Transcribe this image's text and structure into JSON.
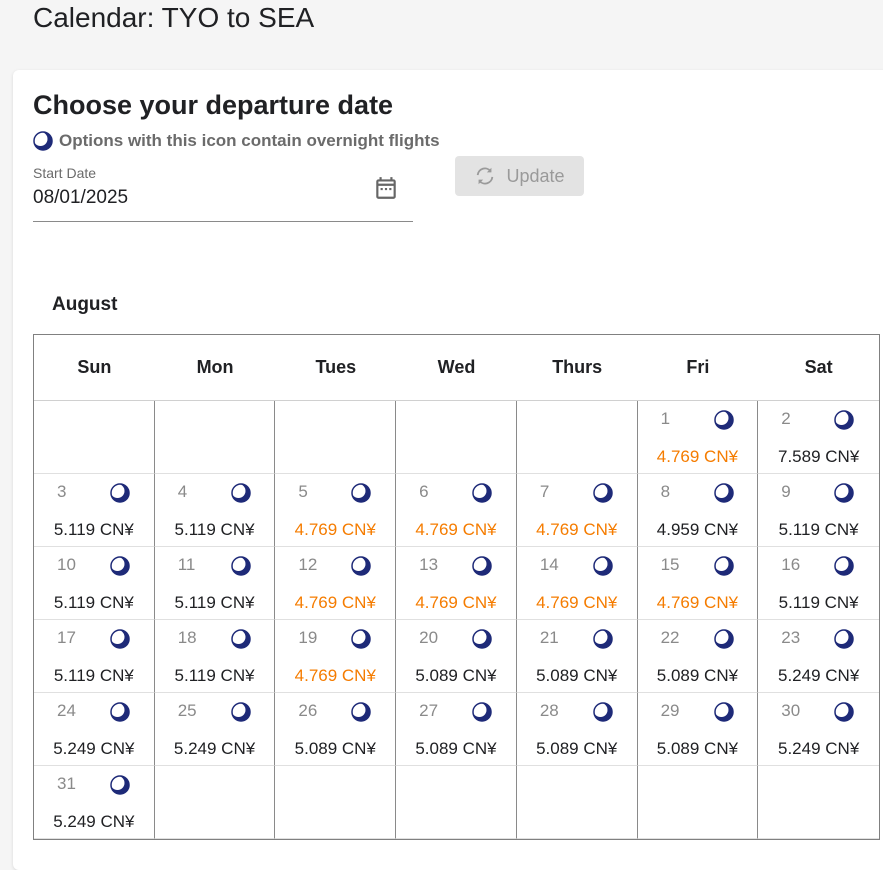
{
  "page": {
    "title": "Calendar: TYO to SEA"
  },
  "card": {
    "title": "Choose your departure date",
    "legend_text": "Options with this icon contain overnight flights",
    "date_field": {
      "label": "Start Date",
      "value": "08/01/2025"
    },
    "update_button": "Update"
  },
  "calendar": {
    "month": "August",
    "weekdays": [
      "Sun",
      "Mon",
      "Tues",
      "Wed",
      "Thurs",
      "Fri",
      "Sat"
    ],
    "currency": "CN¥",
    "colors": {
      "lowest_price": "#f57c00",
      "normal_price": "#202124",
      "moon": "#1e2a78"
    },
    "days": [
      {
        "day": "1",
        "price": "4.769 CN¥",
        "lowest": true,
        "overnight": true
      },
      {
        "day": "2",
        "price": "7.589 CN¥",
        "lowest": false,
        "overnight": true
      },
      {
        "day": "3",
        "price": "5.119 CN¥",
        "lowest": false,
        "overnight": true
      },
      {
        "day": "4",
        "price": "5.119 CN¥",
        "lowest": false,
        "overnight": true
      },
      {
        "day": "5",
        "price": "4.769 CN¥",
        "lowest": true,
        "overnight": true
      },
      {
        "day": "6",
        "price": "4.769 CN¥",
        "lowest": true,
        "overnight": true
      },
      {
        "day": "7",
        "price": "4.769 CN¥",
        "lowest": true,
        "overnight": true
      },
      {
        "day": "8",
        "price": "4.959 CN¥",
        "lowest": false,
        "overnight": true
      },
      {
        "day": "9",
        "price": "5.119 CN¥",
        "lowest": false,
        "overnight": true
      },
      {
        "day": "10",
        "price": "5.119 CN¥",
        "lowest": false,
        "overnight": true
      },
      {
        "day": "11",
        "price": "5.119 CN¥",
        "lowest": false,
        "overnight": true
      },
      {
        "day": "12",
        "price": "4.769 CN¥",
        "lowest": true,
        "overnight": true
      },
      {
        "day": "13",
        "price": "4.769 CN¥",
        "lowest": true,
        "overnight": true
      },
      {
        "day": "14",
        "price": "4.769 CN¥",
        "lowest": true,
        "overnight": true
      },
      {
        "day": "15",
        "price": "4.769 CN¥",
        "lowest": true,
        "overnight": true
      },
      {
        "day": "16",
        "price": "5.119 CN¥",
        "lowest": false,
        "overnight": true
      },
      {
        "day": "17",
        "price": "5.119 CN¥",
        "lowest": false,
        "overnight": true
      },
      {
        "day": "18",
        "price": "5.119 CN¥",
        "lowest": false,
        "overnight": true
      },
      {
        "day": "19",
        "price": "4.769 CN¥",
        "lowest": true,
        "overnight": true
      },
      {
        "day": "20",
        "price": "5.089 CN¥",
        "lowest": false,
        "overnight": true
      },
      {
        "day": "21",
        "price": "5.089 CN¥",
        "lowest": false,
        "overnight": true
      },
      {
        "day": "22",
        "price": "5.089 CN¥",
        "lowest": false,
        "overnight": true
      },
      {
        "day": "23",
        "price": "5.249 CN¥",
        "lowest": false,
        "overnight": true
      },
      {
        "day": "24",
        "price": "5.249 CN¥",
        "lowest": false,
        "overnight": true
      },
      {
        "day": "25",
        "price": "5.249 CN¥",
        "lowest": false,
        "overnight": true
      },
      {
        "day": "26",
        "price": "5.089 CN¥",
        "lowest": false,
        "overnight": true
      },
      {
        "day": "27",
        "price": "5.089 CN¥",
        "lowest": false,
        "overnight": true
      },
      {
        "day": "28",
        "price": "5.089 CN¥",
        "lowest": false,
        "overnight": true
      },
      {
        "day": "29",
        "price": "5.089 CN¥",
        "lowest": false,
        "overnight": true
      },
      {
        "day": "30",
        "price": "5.249 CN¥",
        "lowest": false,
        "overnight": true
      },
      {
        "day": "31",
        "price": "5.249 CN¥",
        "lowest": false,
        "overnight": true
      }
    ],
    "first_weekday_index": 5
  }
}
